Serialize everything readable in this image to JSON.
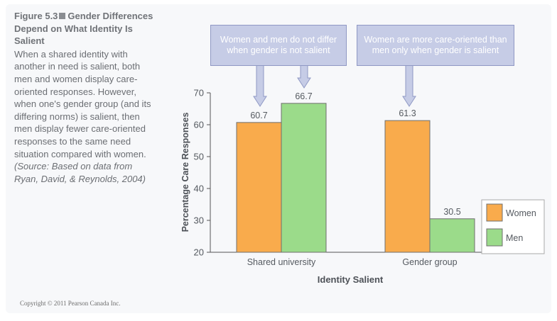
{
  "caption": {
    "figure_label": "Figure 5.3",
    "figure_title_rest": "Gender Differences Depend on What Identity Is Salient",
    "description": "When a shared identity with another in need is salient, both men and women display care-oriented responses. However, when one's gender group (and its differing norms) is salient, then men display fewer care-oriented responses to the same need situation compared with women.",
    "source": "(Source: Based on data from Ryan, David, & Reynolds, 2004)"
  },
  "copyright": "Copyright © 2011 Pearson Canada Inc.",
  "annotations": [
    {
      "text": "Women and men do not differ when gender is not salient"
    },
    {
      "text": "Women are more care-oriented than men only when gender is salient"
    }
  ],
  "colors": {
    "women": "#f9ab4c",
    "men": "#9bdb8a",
    "callout_fill": "#c6cce6",
    "callout_border": "#8f98c4"
  },
  "chart_data": {
    "type": "bar",
    "categories": [
      "Shared university",
      "Gender group"
    ],
    "series": [
      {
        "name": "Women",
        "values": [
          60.7,
          61.3
        ]
      },
      {
        "name": "Men",
        "values": [
          66.7,
          30.5
        ]
      }
    ],
    "data_labels": [
      [
        "60.7",
        "66.7"
      ],
      [
        "61.3",
        "30.5"
      ]
    ],
    "xlabel": "Identity Salient",
    "ylabel": "Percentage Care Responses",
    "ylim": [
      20,
      70
    ],
    "yticks": [
      20,
      30,
      40,
      50,
      60,
      70
    ],
    "grid": false,
    "legend_position": "right"
  }
}
